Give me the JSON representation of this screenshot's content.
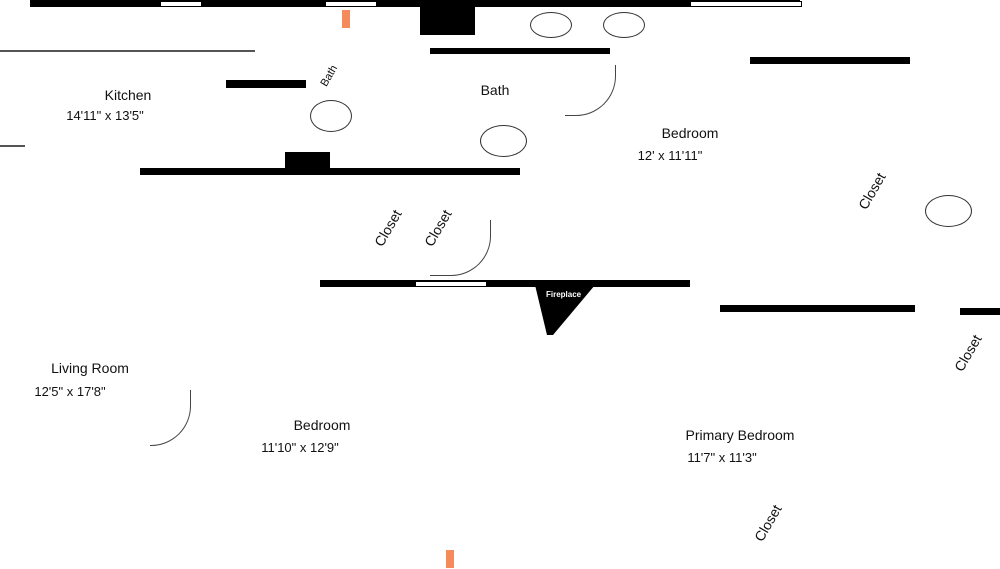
{
  "floorplan": {
    "rooms": [
      {
        "name": "Kitchen",
        "dimensions": "14'11\" x 13'5\""
      },
      {
        "name": "Bath"
      },
      {
        "name": "Bath"
      },
      {
        "name": "Bedroom",
        "dimensions": "12' x 11'11\""
      },
      {
        "name": "Closet"
      },
      {
        "name": "Closet"
      },
      {
        "name": "Closet"
      },
      {
        "name": "Living Room",
        "dimensions": "12'5\" x 17'8\""
      },
      {
        "name": "Bedroom",
        "dimensions": "11'10\" x 12'9\""
      },
      {
        "name": "Primary Bedroom",
        "dimensions": "11'7\" x 11'3\""
      },
      {
        "name": "Closet"
      },
      {
        "name": "Closet"
      }
    ],
    "fireplace_label": "Fireplace",
    "colors": {
      "wall": "#000000",
      "marker": "#f58a5a"
    }
  }
}
